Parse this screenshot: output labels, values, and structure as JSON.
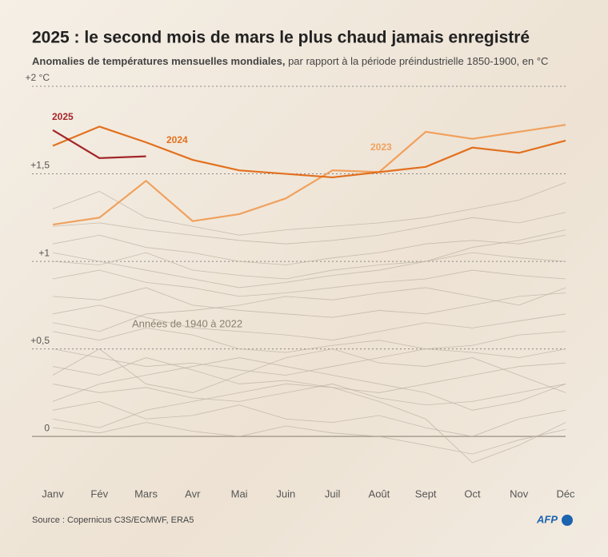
{
  "chart_data": {
    "type": "line",
    "title": "2025 : le second mois de mars le plus chaud jamais enregistré",
    "subtitle_bold": "Anomalies de températures mensuelles mondiales,",
    "subtitle": "par rapport à la période préindustrielle 1850-1900, en °C",
    "annotation": "Années de 1940 à 2022",
    "source": "Source : Copernicus C3S/ECMWF, ERA5",
    "logo": "AFP",
    "categories": [
      "Janv",
      "Fév",
      "Mars",
      "Avr",
      "Mai",
      "Juin",
      "Juil",
      "Août",
      "Sept",
      "Oct",
      "Nov",
      "Déc"
    ],
    "ylim": [
      -0.2,
      2
    ],
    "yticks": [
      {
        "value": 2,
        "label": "+2 °C"
      },
      {
        "value": 1.5,
        "label": "+1,5"
      },
      {
        "value": 1,
        "label": "+1"
      },
      {
        "value": 0.5,
        "label": "+0,5"
      },
      0
    ],
    "grid": true,
    "series": [
      {
        "color": "#bdb2a3",
        "values": [
          0.05,
          0.02,
          0.08,
          0.03,
          0.0,
          0.06,
          0.02,
          0.0,
          -0.05,
          -0.1,
          -0.02,
          0.04
        ]
      },
      {
        "color": "#bdb2a3",
        "values": [
          0.15,
          0.2,
          0.1,
          0.12,
          0.18,
          0.1,
          0.08,
          0.12,
          0.05,
          0.0,
          0.1,
          0.15
        ]
      },
      {
        "color": "#bdb2a3",
        "values": [
          0.3,
          0.25,
          0.28,
          0.22,
          0.2,
          0.25,
          0.3,
          0.22,
          0.18,
          0.2,
          0.25,
          0.3
        ]
      },
      {
        "color": "#bdb2a3",
        "values": [
          0.4,
          0.35,
          0.45,
          0.38,
          0.3,
          0.32,
          0.28,
          0.25,
          0.3,
          0.35,
          0.4,
          0.42
        ]
      },
      {
        "color": "#bdb2a3",
        "values": [
          0.2,
          0.3,
          0.35,
          0.4,
          0.45,
          0.4,
          0.35,
          0.3,
          0.25,
          0.15,
          0.2,
          0.3
        ]
      },
      {
        "color": "#bdb2a3",
        "values": [
          0.5,
          0.45,
          0.4,
          0.42,
          0.38,
          0.35,
          0.4,
          0.45,
          0.5,
          0.48,
          0.45,
          0.5
        ]
      },
      {
        "color": "#bdb2a3",
        "values": [
          0.6,
          0.55,
          0.62,
          0.58,
          0.5,
          0.48,
          0.52,
          0.55,
          0.5,
          0.52,
          0.58,
          0.6
        ]
      },
      {
        "color": "#bdb2a3",
        "values": [
          0.7,
          0.75,
          0.68,
          0.62,
          0.6,
          0.58,
          0.55,
          0.6,
          0.65,
          0.62,
          0.66,
          0.7
        ]
      },
      {
        "color": "#bdb2a3",
        "values": [
          0.8,
          0.78,
          0.85,
          0.75,
          0.72,
          0.7,
          0.68,
          0.72,
          0.7,
          0.75,
          0.8,
          0.82
        ]
      },
      {
        "color": "#bdb2a3",
        "values": [
          0.9,
          0.95,
          0.88,
          0.85,
          0.8,
          0.82,
          0.85,
          0.88,
          0.9,
          0.95,
          0.92,
          0.9
        ]
      },
      {
        "color": "#bdb2a3",
        "values": [
          1.0,
          0.98,
          1.05,
          0.95,
          0.92,
          0.9,
          0.95,
          0.98,
          1.0,
          1.05,
          1.02,
          1.0
        ]
      },
      {
        "color": "#bdb2a3",
        "values": [
          1.1,
          1.15,
          1.08,
          1.05,
          1.0,
          0.98,
          1.02,
          1.05,
          1.1,
          1.12,
          1.1,
          1.15
        ]
      },
      {
        "color": "#bdb2a3",
        "values": [
          1.2,
          1.22,
          1.18,
          1.15,
          1.12,
          1.1,
          1.12,
          1.15,
          1.2,
          1.25,
          1.22,
          1.28
        ]
      },
      {
        "color": "#bdb2a3",
        "values": [
          1.3,
          1.4,
          1.25,
          1.2,
          1.15,
          1.18,
          1.2,
          1.22,
          1.25,
          1.3,
          1.35,
          1.45
        ]
      },
      {
        "color": "#bdb2a3",
        "values": [
          0.35,
          0.5,
          0.3,
          0.25,
          0.35,
          0.45,
          0.5,
          0.42,
          0.4,
          0.45,
          0.35,
          0.25
        ]
      },
      {
        "color": "#bdb2a3",
        "values": [
          0.65,
          0.6,
          0.7,
          0.72,
          0.75,
          0.8,
          0.78,
          0.82,
          0.85,
          0.8,
          0.75,
          0.85
        ]
      },
      {
        "color": "#bdb2a3",
        "values": [
          0.1,
          0.05,
          0.15,
          0.2,
          0.25,
          0.3,
          0.28,
          0.2,
          0.1,
          -0.15,
          -0.05,
          0.08
        ]
      },
      {
        "color": "#bdb2a3",
        "values": [
          1.05,
          1.0,
          0.95,
          0.9,
          0.85,
          0.88,
          0.92,
          0.95,
          1.0,
          1.08,
          1.12,
          1.18
        ]
      },
      {
        "name": "2023",
        "color": "#f0a15e",
        "values": [
          1.21,
          1.25,
          1.46,
          1.23,
          1.27,
          1.36,
          1.52,
          1.51,
          1.74,
          1.7,
          1.74,
          1.78
        ]
      },
      {
        "name": "2024",
        "color": "#e2701e",
        "values": [
          1.66,
          1.77,
          1.68,
          1.58,
          1.52,
          1.5,
          1.48,
          1.51,
          1.54,
          1.65,
          1.62,
          1.69
        ]
      },
      {
        "name": "2025",
        "color": "#a3262a",
        "values": [
          1.75,
          1.59,
          1.6,
          null,
          null,
          null,
          null,
          null,
          null,
          null,
          null,
          null
        ]
      }
    ]
  }
}
